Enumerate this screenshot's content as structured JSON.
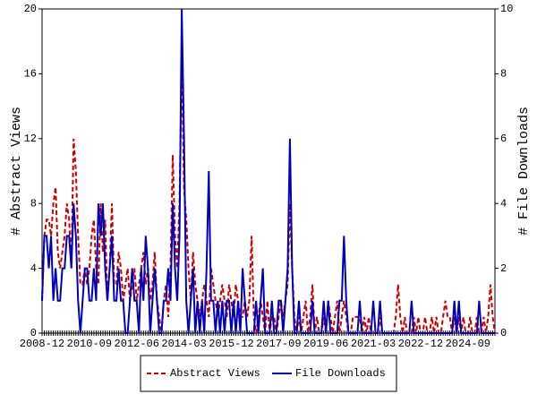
{
  "chart_data": {
    "type": "line",
    "categories": [
      "2008-12",
      null,
      null,
      null,
      null,
      null,
      null,
      null,
      null,
      null,
      null,
      null,
      null,
      null,
      null,
      null,
      null,
      null,
      null,
      null,
      null,
      "2010-09",
      null,
      null,
      null,
      null,
      null,
      null,
      null,
      null,
      null,
      null,
      null,
      null,
      null,
      null,
      null,
      null,
      null,
      null,
      null,
      null,
      "2012-06",
      null,
      null,
      null,
      null,
      null,
      null,
      null,
      null,
      null,
      null,
      null,
      null,
      null,
      null,
      null,
      null,
      null,
      null,
      null,
      null,
      "2014-03",
      null,
      null,
      null,
      null,
      null,
      null,
      null,
      null,
      null,
      null,
      null,
      null,
      null,
      null,
      null,
      null,
      null,
      null,
      null,
      null,
      "2015-12",
      null,
      null,
      null,
      null,
      null,
      null,
      null,
      null,
      null,
      null,
      null,
      null,
      null,
      null,
      null,
      null,
      null,
      null,
      null,
      null,
      "2017-09",
      null,
      null,
      null,
      null,
      null,
      null,
      null,
      null,
      null,
      null,
      null,
      null,
      null,
      null,
      null,
      null,
      null,
      null,
      null,
      null,
      "2019-06",
      null,
      null,
      null,
      null,
      null,
      null,
      null,
      null,
      null,
      null,
      null,
      null,
      null,
      null,
      null,
      null,
      null,
      null,
      null,
      null,
      "2021-03",
      null,
      null,
      null,
      null,
      null,
      null,
      null,
      null,
      null,
      null,
      null,
      null,
      null,
      null,
      null,
      null,
      null,
      null,
      null,
      null,
      "2022-12",
      null,
      null,
      null,
      null,
      null,
      null,
      null,
      null,
      null,
      null,
      null,
      null,
      null,
      null,
      null,
      null,
      null,
      null,
      null,
      null,
      "2024-09",
      null,
      null,
      null,
      null,
      null,
      null,
      null,
      null,
      null,
      null,
      null,
      null
    ],
    "y_label": "# Abstract Views",
    "y2_label": "# File Downloads",
    "ylim": [
      0,
      20
    ],
    "yticks": [
      0,
      4,
      8,
      12,
      16,
      20
    ],
    "y2lim": [
      0,
      10
    ],
    "y2ticks": [
      0,
      2,
      4,
      6,
      8,
      10
    ],
    "series": [
      {
        "name": "Abstract Views",
        "color": "#cc0000",
        "style": "dashed",
        "axis": "y",
        "values": [
          2,
          6,
          7,
          7,
          6,
          8,
          9,
          5,
          4,
          5,
          6,
          8,
          7,
          4,
          12,
          10,
          6,
          3,
          3,
          4,
          3,
          4,
          6,
          7,
          4,
          3,
          8,
          5,
          7,
          2,
          4,
          8,
          3,
          3,
          5,
          4,
          2,
          3,
          4,
          2,
          3,
          4,
          2,
          3,
          4,
          5,
          3,
          4,
          2,
          3,
          5,
          2,
          1,
          0,
          2,
          3,
          1,
          4,
          11,
          6,
          4,
          8,
          17,
          9,
          7,
          4,
          2,
          5,
          3,
          2,
          1,
          2,
          3,
          2,
          1,
          4,
          3,
          2,
          1,
          2,
          3,
          2,
          1,
          3,
          2,
          1,
          3,
          2,
          1,
          1,
          2,
          1,
          2,
          6,
          1,
          0,
          1,
          2,
          1,
          0,
          2,
          0,
          1,
          1,
          0,
          1,
          2,
          1,
          2,
          3,
          8,
          4,
          1,
          0,
          1,
          0,
          1,
          2,
          0,
          1,
          3,
          0,
          1,
          0,
          0,
          1,
          0,
          2,
          1,
          0,
          1,
          2,
          0,
          1,
          2,
          1,
          0,
          0,
          1,
          1,
          1,
          1,
          0,
          1,
          0,
          1,
          0,
          0,
          0,
          0,
          1,
          0,
          0,
          0,
          0,
          0,
          0,
          1,
          3,
          1,
          0,
          1,
          0,
          0,
          0,
          1,
          0,
          1,
          0,
          0,
          1,
          0,
          0,
          1,
          0,
          1,
          0,
          0,
          1,
          2,
          1,
          1,
          0,
          1,
          0,
          1,
          0,
          1,
          0,
          0,
          1,
          0,
          0,
          1,
          0,
          0,
          1,
          0,
          1,
          3,
          1,
          0
        ]
      },
      {
        "name": "File Downloads",
        "color": "#0000bb",
        "style": "solid",
        "axis": "y2",
        "values": [
          1,
          3,
          3,
          2,
          3,
          1,
          2,
          1,
          1,
          2,
          2,
          3,
          3,
          2,
          4,
          3,
          1,
          0,
          1,
          2,
          2,
          1,
          1,
          2,
          1,
          4,
          3,
          4,
          2,
          1,
          2,
          3,
          1,
          1,
          2,
          1,
          1,
          0,
          0,
          1,
          2,
          1,
          1,
          0,
          2,
          1,
          3,
          2,
          0,
          1,
          2,
          1,
          0,
          0,
          1,
          1,
          2,
          1,
          4,
          2,
          1,
          3,
          10,
          6,
          1,
          0,
          1,
          2,
          0,
          1,
          0,
          1,
          0,
          2,
          5,
          1,
          1,
          0,
          1,
          0,
          1,
          0,
          1,
          1,
          0,
          1,
          0,
          1,
          0,
          2,
          1,
          0,
          0,
          0,
          0,
          1,
          0,
          1,
          2,
          0,
          0,
          0,
          1,
          0,
          0,
          1,
          1,
          0,
          1,
          2,
          6,
          2,
          0,
          0,
          1,
          0,
          0,
          0,
          0,
          0,
          1,
          0,
          0,
          0,
          0,
          1,
          0,
          1,
          0,
          0,
          0,
          0,
          1,
          1,
          3,
          1,
          0,
          0,
          0,
          0,
          0,
          1,
          0,
          0,
          0,
          0,
          0,
          1,
          0,
          0,
          1,
          0,
          0,
          0,
          0,
          0,
          0,
          0,
          0,
          0,
          0,
          0,
          0,
          0,
          1,
          0,
          0,
          0,
          0,
          0,
          0,
          0,
          0,
          0,
          0,
          0,
          0,
          0,
          0,
          0,
          0,
          0,
          0,
          1,
          0,
          1,
          0,
          0,
          0,
          0,
          0,
          0,
          0,
          0,
          1,
          0,
          0,
          0,
          0,
          0,
          0,
          0
        ]
      }
    ]
  }
}
